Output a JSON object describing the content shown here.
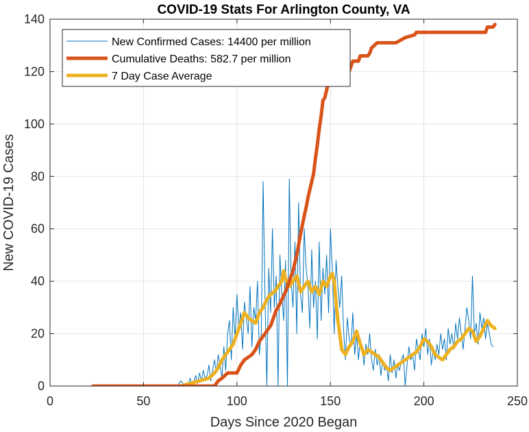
{
  "chart_data": {
    "type": "line",
    "title": "COVID-19 Stats For Arlington County, VA",
    "xlabel": "Days Since 2020 Began",
    "ylabel": "New COVID-19 Cases",
    "xlim": [
      0,
      250
    ],
    "ylim": [
      0,
      140
    ],
    "xticks": [
      0,
      50,
      100,
      150,
      200,
      250
    ],
    "yticks": [
      0,
      20,
      40,
      60,
      80,
      100,
      120,
      140
    ],
    "grid": true,
    "legend_position": "top-left",
    "series": [
      {
        "name": "New Confirmed Cases: 14400 per million",
        "color": "#0072BD",
        "style": "thin",
        "x": [
          23,
          30,
          40,
          50,
          60,
          65,
          68,
          70,
          72,
          74,
          75,
          76,
          77,
          78,
          79,
          80,
          81,
          82,
          83,
          84,
          85,
          86,
          87,
          88,
          89,
          90,
          91,
          92,
          93,
          94,
          95,
          96,
          97,
          98,
          99,
          100,
          101,
          102,
          103,
          104,
          105,
          106,
          107,
          108,
          109,
          110,
          111,
          112,
          113,
          114,
          115,
          116,
          117,
          118,
          119,
          120,
          121,
          122,
          123,
          124,
          125,
          126,
          127,
          128,
          129,
          130,
          131,
          132,
          133,
          134,
          135,
          136,
          137,
          138,
          139,
          140,
          141,
          142,
          143,
          144,
          145,
          146,
          147,
          148,
          149,
          150,
          151,
          152,
          153,
          154,
          155,
          156,
          157,
          158,
          159,
          160,
          161,
          162,
          163,
          164,
          165,
          166,
          167,
          168,
          169,
          170,
          171,
          172,
          173,
          174,
          175,
          176,
          177,
          178,
          179,
          180,
          181,
          182,
          183,
          184,
          185,
          186,
          187,
          188,
          189,
          190,
          191,
          192,
          193,
          194,
          195,
          196,
          197,
          198,
          199,
          200,
          201,
          202,
          203,
          204,
          205,
          206,
          207,
          208,
          209,
          210,
          211,
          212,
          213,
          214,
          215,
          216,
          217,
          218,
          219,
          220,
          221,
          222,
          223,
          224,
          225,
          226,
          227,
          228,
          229,
          230,
          231,
          232,
          233,
          234,
          235,
          236,
          237
        ],
        "values": [
          0,
          0,
          0,
          0,
          0,
          0,
          0,
          2,
          0,
          1,
          3,
          0,
          2,
          4,
          1,
          5,
          2,
          6,
          3,
          4,
          8,
          2,
          6,
          10,
          5,
          12,
          8,
          3,
          15,
          6,
          20,
          25,
          10,
          30,
          18,
          35,
          22,
          28,
          14,
          32,
          26,
          20,
          38,
          15,
          30,
          25,
          40,
          12,
          20,
          78,
          35,
          0,
          45,
          28,
          60,
          30,
          42,
          0,
          50,
          35,
          25,
          48,
          0,
          79,
          40,
          30,
          55,
          20,
          70,
          35,
          28,
          60,
          45,
          38,
          22,
          52,
          30,
          40,
          18,
          55,
          25,
          45,
          35,
          50,
          28,
          60,
          45,
          20,
          48,
          38,
          30,
          42,
          22,
          10,
          26,
          18,
          15,
          28,
          12,
          20,
          10,
          18,
          14,
          8,
          16,
          12,
          20,
          10,
          6,
          14,
          8,
          12,
          4,
          10,
          6,
          8,
          2,
          12,
          5,
          10,
          3,
          8,
          6,
          10,
          12,
          0,
          8,
          15,
          10,
          12,
          6,
          18,
          14,
          10,
          20,
          15,
          22,
          12,
          18,
          8,
          14,
          10,
          16,
          12,
          20,
          14,
          18,
          10,
          22,
          16,
          20,
          14,
          24,
          18,
          26,
          20,
          14,
          22,
          30,
          25,
          18,
          42,
          20,
          24,
          16,
          28,
          22,
          26,
          18,
          24,
          20,
          16,
          15
        ]
      },
      {
        "name": "Cumulative Deaths: 582.7 per million",
        "color": "#D95319",
        "style": "thick",
        "x": [
          23,
          60,
          70,
          75,
          80,
          85,
          88,
          90,
          92,
          95,
          98,
          100,
          102,
          104,
          106,
          108,
          110,
          112,
          114,
          116,
          118,
          120,
          121,
          122,
          124,
          126,
          128,
          130,
          132,
          134,
          136,
          137,
          138,
          140,
          141,
          142,
          143,
          144,
          145,
          146,
          147,
          148,
          149,
          150,
          151,
          152,
          153,
          154,
          155,
          156,
          157,
          158,
          160,
          161,
          162,
          165,
          166,
          168,
          170,
          171,
          172,
          175,
          176,
          178,
          180,
          185,
          190,
          195,
          196,
          200,
          205,
          210,
          220,
          230,
          233,
          234,
          237,
          238
        ],
        "values": [
          0,
          0,
          0,
          0,
          0,
          0,
          0,
          2,
          3,
          5,
          5,
          5,
          8,
          10,
          11,
          12,
          14,
          17,
          19,
          21,
          23,
          27,
          29,
          30,
          33,
          36,
          40,
          44,
          50,
          58,
          65,
          68,
          72,
          78,
          81,
          87,
          92,
          98,
          103,
          109,
          110,
          113,
          116,
          118,
          120,
          121,
          122,
          122,
          122,
          122,
          122,
          123,
          120,
          122,
          124,
          124,
          126,
          126,
          126,
          127,
          129,
          131,
          131,
          131,
          131,
          131,
          133,
          134,
          135,
          135,
          135,
          135,
          135,
          135,
          135,
          137,
          137,
          138
        ]
      },
      {
        "name": "7 Day Case Average",
        "color": "#EDB120",
        "style": "thick",
        "x": [
          23,
          40,
          60,
          70,
          75,
          80,
          85,
          88,
          90,
          92,
          94,
          96,
          98,
          100,
          102,
          104,
          106,
          108,
          110,
          112,
          114,
          116,
          118,
          120,
          122,
          124,
          125,
          126,
          128,
          130,
          132,
          134,
          136,
          138,
          140,
          142,
          144,
          146,
          148,
          150,
          151,
          152,
          153,
          154,
          155,
          156,
          158,
          160,
          162,
          164,
          166,
          168,
          170,
          172,
          174,
          176,
          178,
          180,
          182,
          184,
          186,
          188,
          190,
          192,
          194,
          196,
          198,
          200,
          202,
          204,
          206,
          208,
          210,
          212,
          214,
          216,
          218,
          220,
          222,
          224,
          226,
          228,
          230,
          232,
          234,
          236,
          238
        ],
        "values": [
          0,
          0,
          0,
          0,
          1,
          2,
          3,
          5,
          7,
          10,
          12,
          14,
          16,
          20,
          24,
          28,
          26,
          25,
          24,
          28,
          30,
          33,
          35,
          36,
          38,
          40,
          44,
          41,
          38,
          40,
          42,
          36,
          38,
          40,
          36,
          38,
          35,
          40,
          38,
          42,
          43,
          40,
          32,
          25,
          20,
          14,
          12,
          15,
          17,
          21,
          16,
          12,
          14,
          13,
          12,
          11,
          9,
          7,
          6,
          7,
          8,
          9,
          10,
          11,
          12,
          13,
          15,
          18,
          17,
          15,
          12,
          11,
          10,
          12,
          14,
          15,
          17,
          18,
          20,
          22,
          21,
          17,
          19,
          22,
          25,
          23,
          22
        ]
      }
    ]
  }
}
